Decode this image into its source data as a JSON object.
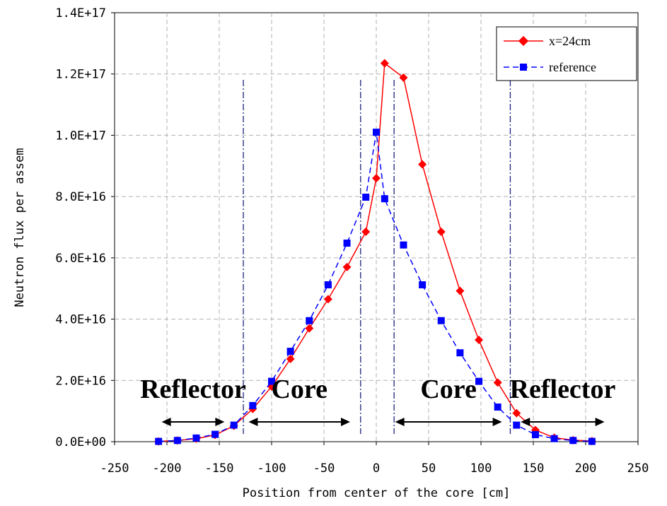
{
  "chart_data": {
    "type": "line",
    "title": "",
    "xlabel": "Position from center of the core [cm]",
    "ylabel": "Neutron flux per assem",
    "xlim": [
      -250,
      250
    ],
    "ylim": [
      0,
      1.4e+17
    ],
    "xticks": [
      "-250",
      "-200",
      "-150",
      "-100",
      "-50",
      "0",
      "50",
      "100",
      "150",
      "200",
      "250"
    ],
    "yticks": [
      "0.0E+00",
      "2.0E+16",
      "4.0E+16",
      "6.0E+16",
      "8.0E+16",
      "1.0E+17",
      "1.2E+17",
      "1.4E+17"
    ],
    "grid": true,
    "legend_position": "top-right",
    "series": [
      {
        "name": "x=24cm",
        "color": "#ff0000",
        "marker": "diamond",
        "line": "solid",
        "x": [
          -208,
          -190,
          -172,
          -154,
          -136,
          -118,
          -100,
          -82,
          -64,
          -46,
          -28,
          -10,
          0,
          8,
          26,
          44,
          62,
          80,
          98,
          116,
          134,
          152,
          170,
          188,
          206
        ],
        "y": [
          100000000000000.0,
          400000000000000.0,
          1000000000000000.0,
          2200000000000000.0,
          5200000000000000.0,
          1.07e+16,
          1.8e+16,
          2.7e+16,
          3.7e+16,
          4.65e+16,
          5.7e+16,
          6.85e+16,
          8.6e+16,
          1.235e+17,
          1.188e+17,
          9.05e+16,
          6.85e+16,
          4.92e+16,
          3.32e+16,
          1.93e+16,
          9300000000000000.0,
          3800000000000000.0,
          1300000000000000.0,
          500000000000000.0,
          200000000000000.0
        ]
      },
      {
        "name": "reference",
        "color": "#0000ff",
        "marker": "square",
        "line": "dashed",
        "x": [
          -208,
          -190,
          -172,
          -154,
          -136,
          -118,
          -100,
          -82,
          -64,
          -46,
          -28,
          -10,
          0,
          8,
          26,
          44,
          62,
          80,
          98,
          116,
          134,
          152,
          170,
          188,
          206
        ],
        "y": [
          100000000000000.0,
          400000000000000.0,
          1200000000000000.0,
          2400000000000000.0,
          5400000000000000.0,
          1.18e+16,
          1.97e+16,
          2.95e+16,
          3.95e+16,
          5.12e+16,
          6.48e+16,
          7.98e+16,
          1.01e+17,
          7.93e+16,
          6.42e+16,
          5.12e+16,
          3.95e+16,
          2.9e+16,
          1.97e+16,
          1.13e+16,
          5400000000000000.0,
          2300000000000000.0,
          1000000000000000.0,
          400000000000000.0,
          100000000000000.0
        ]
      }
    ],
    "boundaries_x": [
      -127,
      -15,
      17,
      128
    ],
    "annotations": [
      {
        "text": "Reflector",
        "arrow": [
          -205,
          -145
        ]
      },
      {
        "text": "Core",
        "arrow": [
          -122,
          -25
        ]
      },
      {
        "text": "Core",
        "arrow": [
          18,
          120
        ]
      },
      {
        "text": "Reflector",
        "arrow": [
          138,
          218
        ]
      }
    ],
    "colors": {
      "boundary": "#1a237e",
      "grid": "#b0b0b0"
    }
  }
}
